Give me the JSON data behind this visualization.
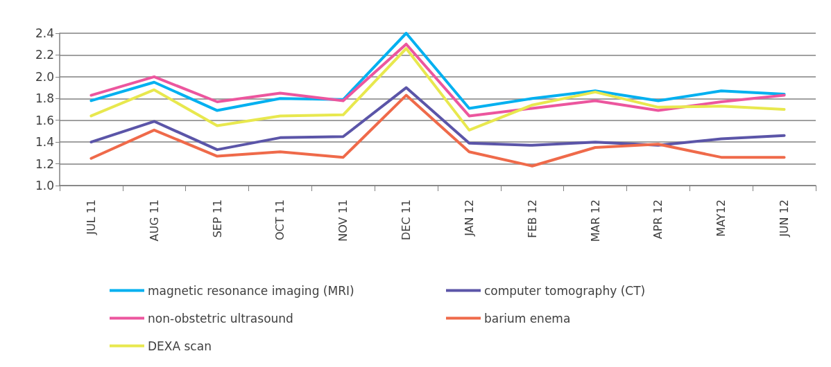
{
  "chart_data": {
    "type": "line",
    "categories": [
      "JUL 11",
      "AUG 11",
      "SEP 11",
      "OCT 11",
      "NOV 11",
      "DEC 11",
      "JAN 12",
      "FEB 12",
      "MAR 12",
      "APR 12",
      "MAY12",
      "JUN 12"
    ],
    "series": [
      {
        "name": "magnetic resonance imaging (MRI)",
        "color": "#00b0f0",
        "values": [
          1.78,
          1.95,
          1.69,
          1.8,
          1.79,
          2.4,
          1.71,
          1.8,
          1.87,
          1.78,
          1.87,
          1.84
        ]
      },
      {
        "name": "computer tomography (CT)",
        "color": "#5b55a8",
        "values": [
          1.4,
          1.59,
          1.33,
          1.44,
          1.45,
          1.9,
          1.39,
          1.37,
          1.4,
          1.37,
          1.43,
          1.46
        ]
      },
      {
        "name": "non-obstetric ultrasound",
        "color": "#ec569e",
        "values": [
          1.83,
          2.0,
          1.77,
          1.85,
          1.78,
          2.3,
          1.64,
          1.71,
          1.78,
          1.69,
          1.77,
          1.83
        ]
      },
      {
        "name": "barium enema",
        "color": "#ef6a4a",
        "values": [
          1.25,
          1.51,
          1.27,
          1.31,
          1.26,
          1.83,
          1.31,
          1.18,
          1.35,
          1.38,
          1.26,
          1.26
        ]
      },
      {
        "name": "DEXA scan",
        "color": "#e8e84e",
        "values": [
          1.64,
          1.88,
          1.55,
          1.64,
          1.65,
          2.26,
          1.51,
          1.74,
          1.86,
          1.72,
          1.73,
          1.7
        ]
      }
    ],
    "ylim": [
      1.0,
      2.4
    ],
    "yticks": [
      {
        "value": 1.0,
        "label": "1.0"
      },
      {
        "value": 1.2,
        "label": "1.2"
      },
      {
        "value": 1.4,
        "label": "1.4"
      },
      {
        "value": 1.6,
        "label": "1.6"
      },
      {
        "value": 1.8,
        "label": "1.8"
      },
      {
        "value": 2.0,
        "label": "2.0"
      },
      {
        "value": 2.2,
        "label": "2.2"
      },
      {
        "value": 2.4,
        "label": "2.4"
      }
    ],
    "grid": "y",
    "legend": "bottom",
    "marker": "none",
    "line_style": "solid"
  }
}
